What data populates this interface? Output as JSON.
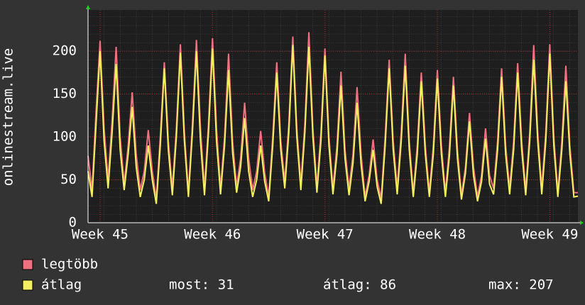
{
  "chart_data": {
    "type": "line",
    "y_label": "onlinestream.live",
    "categories": [
      null,
      null,
      null,
      "Week 45",
      null,
      null,
      null,
      null,
      null,
      null,
      null,
      null,
      null,
      null,
      null,
      null,
      null,
      null,
      null,
      null,
      null,
      null,
      null,
      null,
      null,
      null,
      null,
      null,
      null,
      null,
      null,
      "Week 46",
      null,
      null,
      null,
      null,
      null,
      null,
      null,
      null,
      null,
      null,
      null,
      null,
      null,
      null,
      null,
      null,
      null,
      null,
      null,
      null,
      null,
      null,
      null,
      null,
      null,
      null,
      null,
      "Week 47",
      null,
      null,
      null,
      null,
      null,
      null,
      null,
      null,
      null,
      null,
      null,
      null,
      null,
      null,
      null,
      null,
      null,
      null,
      null,
      null,
      null,
      null,
      null,
      null,
      null,
      null,
      null,
      "Week 48",
      null,
      null,
      null,
      null,
      null,
      null,
      null,
      null,
      null,
      null,
      null,
      null,
      null,
      null,
      null,
      null,
      null,
      null,
      null,
      null,
      null,
      null,
      null,
      null,
      null,
      null,
      null,
      "Week 49",
      null,
      null,
      null,
      null,
      null,
      null,
      null
    ],
    "series": [
      {
        "name": "legtöbb",
        "color": "#f07080",
        "values": [
          78,
          38,
          130,
          212,
          110,
          50,
          120,
          205,
          100,
          45,
          90,
          152,
          80,
          38,
          60,
          108,
          60,
          28,
          100,
          187,
          95,
          40,
          110,
          208,
          105,
          35,
          115,
          213,
          110,
          40,
          115,
          215,
          110,
          40,
          100,
          197,
          95,
          42,
          75,
          140,
          75,
          38,
          60,
          107,
          58,
          30,
          100,
          187,
          95,
          48,
          115,
          217,
          110,
          45,
          115,
          222,
          110,
          42,
          105,
          203,
          100,
          40,
          90,
          176,
          85,
          40,
          80,
          158,
          80,
          30,
          55,
          97,
          50,
          28,
          100,
          190,
          95,
          40,
          105,
          197,
          95,
          35,
          90,
          175,
          90,
          35,
          90,
          178,
          90,
          35,
          88,
          170,
          85,
          32,
          65,
          128,
          65,
          30,
          55,
          110,
          55,
          40,
          95,
          180,
          90,
          40,
          95,
          186,
          95,
          38,
          105,
          207,
          105,
          40,
          105,
          208,
          100,
          35,
          95,
          183,
          90,
          35,
          35
        ]
      },
      {
        "name": "átlag",
        "color": "#f4f060",
        "values": [
          60,
          30,
          115,
          200,
          95,
          40,
          105,
          185,
          85,
          38,
          80,
          135,
          65,
          30,
          50,
          90,
          50,
          22,
          90,
          180,
          85,
          32,
          100,
          198,
          95,
          30,
          105,
          200,
          95,
          32,
          105,
          203,
          95,
          33,
          90,
          178,
          82,
          35,
          65,
          122,
          60,
          30,
          50,
          90,
          48,
          25,
          90,
          175,
          85,
          40,
          105,
          207,
          100,
          38,
          105,
          205,
          100,
          35,
          95,
          195,
          90,
          33,
          80,
          160,
          75,
          32,
          70,
          140,
          68,
          25,
          48,
          85,
          42,
          22,
          90,
          180,
          85,
          33,
          95,
          183,
          85,
          30,
          80,
          165,
          80,
          30,
          80,
          168,
          80,
          30,
          78,
          160,
          75,
          27,
          58,
          118,
          55,
          25,
          48,
          98,
          45,
          33,
          85,
          170,
          80,
          33,
          85,
          175,
          85,
          32,
          95,
          190,
          95,
          33,
          95,
          197,
          90,
          30,
          85,
          165,
          80,
          30,
          31
        ]
      }
    ],
    "ylim": [
      0,
      248
    ],
    "yticks": [
      0,
      50,
      100,
      150,
      200
    ],
    "grid": true,
    "stats": [
      {
        "label": "most:",
        "value": 31
      },
      {
        "label": "átlag:",
        "value": 86
      },
      {
        "label": "max:",
        "value": 207
      }
    ]
  }
}
